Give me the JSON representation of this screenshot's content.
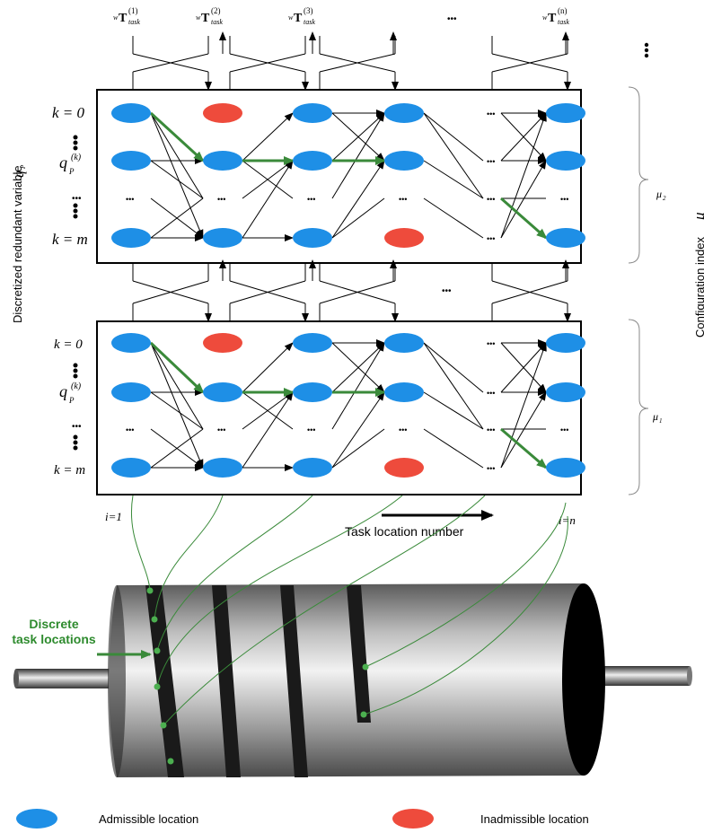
{
  "colors": {
    "admissible": "#1e8fe6",
    "inadmissible": "#ee4b3c",
    "path": "#3a8a3a",
    "frame": "#000000",
    "label_green": "#2e8b2e"
  },
  "task_frames": {
    "prefix": "w",
    "symbol": "T",
    "subscript": "task",
    "items": [
      "(1)",
      "(2)",
      "(3)",
      "(n)"
    ],
    "ellipsis": "•••"
  },
  "axes": {
    "left_label": "Discretized redundant variable",
    "left_symbol": "q",
    "left_symbol_sub": "P",
    "right_label": "Configuration index",
    "right_symbol": "μ"
  },
  "rows": {
    "k0": "k = 0",
    "kq": "q",
    "kq_sub": "P",
    "kq_sup": "(k)",
    "km": "k = m"
  },
  "panels": [
    {
      "name": "upper",
      "mu_label": "μ",
      "mu_sub": "2"
    },
    {
      "name": "lower",
      "mu_label": "μ",
      "mu_sub": "1"
    }
  ],
  "bottom_labels": {
    "i_start": "i=1",
    "i_end": "i=n",
    "task_axis": "Task location number"
  },
  "drum": {
    "discrete_label_line1": "Discrete",
    "discrete_label_line2": "task locations"
  },
  "legend": {
    "admissible": "Admissible location",
    "inadmissible": "Inadmissible location"
  },
  "misc_ellipsis": "•••"
}
